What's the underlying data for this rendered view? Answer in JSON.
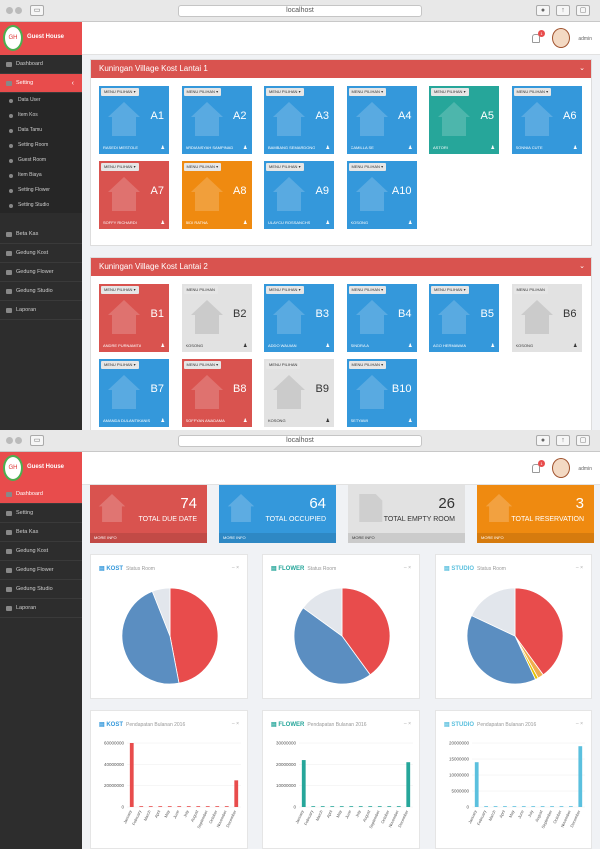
{
  "browser": {
    "url": "localhost"
  },
  "app": {
    "brand": "Guest House",
    "user": "admin"
  },
  "w1": {
    "nav": [
      "Dashboard",
      "Setting",
      "Data User",
      "Item Kos",
      "Data Tamu",
      "Setting Room",
      "Guest Room",
      "Item Biaya",
      "Setting Flower",
      "Setting Studio",
      "Beta Kas",
      "Gedung Kost",
      "Gedung Flower",
      "Gedung Studio",
      "Laporan"
    ],
    "panel1_title": "Kuningan Village Kost Lantai 1",
    "panel2_title": "Kuningan Village Kost Lantai 2",
    "menu_label": "MENU PILIHAN",
    "floor1": [
      {
        "code": "A1",
        "name": "RASEDI MESTOLE",
        "color": "blue"
      },
      {
        "code": "A2",
        "name": "ARDIANSYAH SAMPINAD",
        "color": "blue"
      },
      {
        "code": "A3",
        "name": "BAMBANG SEMARDONO",
        "color": "blue"
      },
      {
        "code": "A4",
        "name": "CAMILLA SE",
        "color": "blue"
      },
      {
        "code": "A5",
        "name": "ASTORI",
        "color": "teal"
      },
      {
        "code": "A6",
        "name": "SONNIA CUTE",
        "color": "blue"
      },
      {
        "code": "A7",
        "name": "SOFFY RICHARDI",
        "color": "red"
      },
      {
        "code": "A8",
        "name": "BIDI RATNA",
        "color": "orange"
      },
      {
        "code": "A9",
        "name": "ULAYCU ROSSANCHS",
        "color": "blue"
      },
      {
        "code": "A10",
        "name": "KOSONG",
        "color": "blue"
      }
    ],
    "floor2": [
      {
        "code": "B1",
        "name": "ANDRE PURNAMITA",
        "color": "red"
      },
      {
        "code": "B2",
        "name": "KOSONG",
        "color": "grey"
      },
      {
        "code": "B3",
        "name": "ADDO WAUIAN",
        "color": "blue"
      },
      {
        "code": "B4",
        "name": "SINDRA A",
        "color": "blue"
      },
      {
        "code": "B5",
        "name": "AGO HERMAWAN",
        "color": "blue"
      },
      {
        "code": "B6",
        "name": "KOSONG",
        "color": "grey"
      },
      {
        "code": "B7",
        "name": "AMANDA DULANTIKANIS",
        "color": "blue"
      },
      {
        "code": "B8",
        "name": "SOFFYAN ANADAMA",
        "color": "red"
      },
      {
        "code": "B9",
        "name": "KOSONG",
        "color": "grey"
      },
      {
        "code": "B10",
        "name": "SETYAWI",
        "color": "blue"
      }
    ]
  },
  "w2": {
    "nav": [
      "Dashboard",
      "Setting",
      "Beta Kas",
      "Gedung Kost",
      "Gedung Flower",
      "Gedung Studio",
      "Laporan"
    ],
    "stats": [
      {
        "num": "74",
        "label": "TOTAL DUE DATE",
        "foot": "MORE INFO",
        "color": "#d9534f"
      },
      {
        "num": "64",
        "label": "TOTAL OCCUPIED",
        "foot": "MORE INFO",
        "color": "#3498db"
      },
      {
        "num": "26",
        "label": "TOTAL EMPTY ROOM",
        "foot": "MORE INFO",
        "color": "#e2e2e2"
      },
      {
        "num": "3",
        "label": "TOTAL RESERVATION",
        "foot": "MORE INFO",
        "color": "#ef8a10"
      }
    ],
    "pie_cards": [
      {
        "title": "KOST",
        "sub": "Status Room",
        "color": "#3498db"
      },
      {
        "title": "FLOWER",
        "sub": "Status Room",
        "color": "#26a69a"
      },
      {
        "title": "STUDIO",
        "sub": "Status Room",
        "color": "#5bc0de"
      }
    ],
    "bar_cards": [
      {
        "title": "KOST",
        "sub": "Pendapatan Bulanan 2016",
        "color": "#3498db"
      },
      {
        "title": "FLOWER",
        "sub": "Pendapatan Bulanan 2016",
        "color": "#26a69a"
      },
      {
        "title": "STUDIO",
        "sub": "Pendapatan Bulanan 2016",
        "color": "#5bc0de"
      }
    ]
  },
  "chart_data": [
    {
      "type": "pie",
      "title": "KOST",
      "slices": [
        {
          "value": 47,
          "color": "#e84c4c"
        },
        {
          "value": 47,
          "color": "#5b8ec1"
        },
        {
          "value": 6,
          "color": "#e2e6ec"
        }
      ]
    },
    {
      "type": "pie",
      "title": "FLOWER",
      "slices": [
        {
          "value": 40,
          "color": "#e84c4c"
        },
        {
          "value": 45,
          "color": "#5b8ec1"
        },
        {
          "value": 15,
          "color": "#e2e6ec"
        }
      ]
    },
    {
      "type": "pie",
      "title": "STUDIO",
      "slices": [
        {
          "value": 40,
          "color": "#e84c4c"
        },
        {
          "value": 2,
          "color": "#f0ad4e"
        },
        {
          "value": 1,
          "color": "#e5c100"
        },
        {
          "value": 39,
          "color": "#5b8ec1"
        },
        {
          "value": 18,
          "color": "#e2e6ec"
        }
      ]
    },
    {
      "type": "bar",
      "title": "KOST",
      "categories": [
        "January",
        "February",
        "March",
        "April",
        "May",
        "June",
        "July",
        "August",
        "September",
        "October",
        "November",
        "December"
      ],
      "values": [
        60000000,
        0,
        0,
        0,
        0,
        0,
        0,
        0,
        0,
        0,
        0,
        25000000
      ],
      "yticks": [
        "60000000",
        "40000000",
        "20000000",
        "0"
      ],
      "ylim": [
        0,
        65000000
      ],
      "color": "#e84c4c"
    },
    {
      "type": "bar",
      "title": "FLOWER",
      "categories": [
        "January",
        "February",
        "March",
        "April",
        "May",
        "June",
        "July",
        "August",
        "September",
        "October",
        "November",
        "December"
      ],
      "values": [
        22000000,
        0,
        0,
        0,
        0,
        0,
        0,
        0,
        0,
        0,
        0,
        21000000
      ],
      "yticks": [
        "30000000",
        "20000000",
        "10000000",
        "0"
      ],
      "ylim": [
        0,
        32000000
      ],
      "color": "#26a69a"
    },
    {
      "type": "bar",
      "title": "STUDIO",
      "categories": [
        "January",
        "February",
        "March",
        "April",
        "May",
        "June",
        "July",
        "August",
        "September",
        "October",
        "November",
        "December"
      ],
      "values": [
        14000000,
        0,
        0,
        0,
        0,
        0,
        0,
        0,
        0,
        0,
        0,
        19000000
      ],
      "yticks": [
        "20000000",
        "15000000",
        "10000000",
        "5000000",
        "0"
      ],
      "ylim": [
        0,
        21000000
      ],
      "color": "#5bc0de"
    }
  ]
}
